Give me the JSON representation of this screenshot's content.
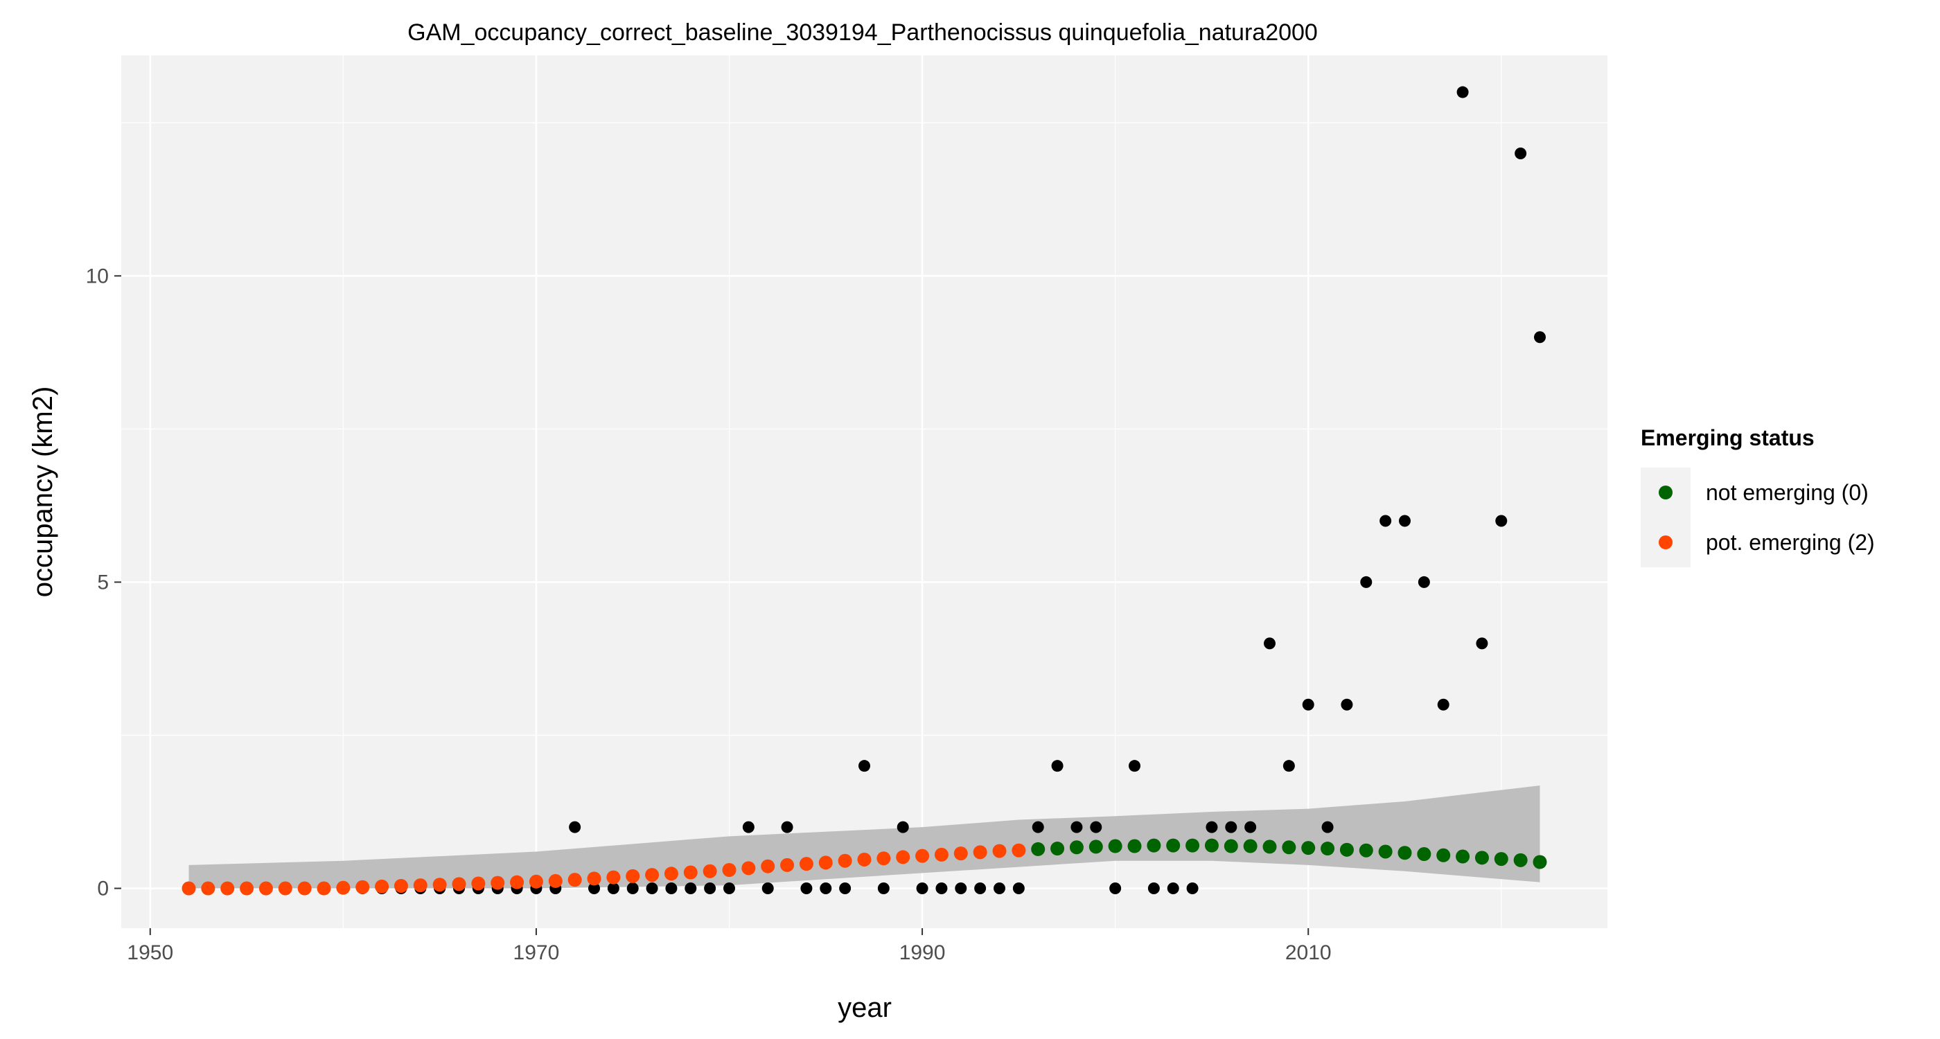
{
  "chart_data": {
    "type": "scatter",
    "title": "GAM_occupancy_correct_baseline_3039194_Parthenocissus quinquefolia_natura2000",
    "xlabel": "year",
    "ylabel": "occupancy (km2)",
    "xlim": [
      1948.5,
      2025.5
    ],
    "ylim": [
      -0.65,
      13.6
    ],
    "x_ticks": [
      1950,
      1970,
      1990,
      2010
    ],
    "y_ticks": [
      0,
      5,
      10
    ],
    "grid": true,
    "legend_position": "right",
    "legend": {
      "title": "Emerging status",
      "items": [
        {
          "label": "not emerging (0)",
          "color": "#006400"
        },
        {
          "label": "pot. emerging (2)",
          "color": "#FF4500"
        }
      ]
    },
    "colors": {
      "panel_bg": "#F2F2F2",
      "grid": "#FFFFFF",
      "ribbon": "#BEBEBE",
      "observed": "#000000",
      "not_emerging": "#006400",
      "pot_emerging": "#FF4500"
    },
    "observed": {
      "x": [
        1952,
        1953,
        1954,
        1955,
        1956,
        1957,
        1958,
        1959,
        1960,
        1961,
        1962,
        1963,
        1964,
        1965,
        1966,
        1967,
        1968,
        1969,
        1970,
        1971,
        1972,
        1973,
        1974,
        1975,
        1976,
        1977,
        1978,
        1979,
        1980,
        1981,
        1982,
        1983,
        1984,
        1985,
        1986,
        1987,
        1988,
        1989,
        1990,
        1991,
        1992,
        1993,
        1994,
        1995,
        1996,
        1997,
        1998,
        1999,
        2000,
        2001,
        2002,
        2003,
        2004,
        2005,
        2006,
        2007,
        2008,
        2009,
        2010,
        2011,
        2012,
        2013,
        2014,
        2015,
        2016,
        2017,
        2018,
        2019,
        2020,
        2021,
        2022
      ],
      "y": [
        0,
        0,
        0,
        0,
        0,
        0,
        0,
        0,
        0,
        0,
        0,
        0,
        0,
        0,
        0,
        0,
        0,
        0,
        0,
        0,
        1,
        0,
        0,
        0,
        0,
        0,
        0,
        0,
        0,
        1,
        0,
        1,
        0,
        0,
        0,
        2,
        0,
        1,
        0,
        0,
        0,
        0,
        0,
        0,
        1,
        2,
        1,
        1,
        0,
        2,
        0,
        0,
        0,
        1,
        1,
        1,
        4,
        2,
        3,
        1,
        3,
        5,
        6,
        6,
        5,
        3,
        13,
        4,
        6,
        12,
        9
      ]
    },
    "fitted": {
      "x": [
        1952,
        1953,
        1954,
        1955,
        1956,
        1957,
        1958,
        1959,
        1960,
        1961,
        1962,
        1963,
        1964,
        1965,
        1966,
        1967,
        1968,
        1969,
        1970,
        1971,
        1972,
        1973,
        1974,
        1975,
        1976,
        1977,
        1978,
        1979,
        1980,
        1981,
        1982,
        1983,
        1984,
        1985,
        1986,
        1987,
        1988,
        1989,
        1990,
        1991,
        1992,
        1993,
        1994,
        1995,
        1996,
        1997,
        1998,
        1999,
        2000,
        2001,
        2002,
        2003,
        2004,
        2005,
        2006,
        2007,
        2008,
        2009,
        2010,
        2011,
        2012,
        2013,
        2014,
        2015,
        2016,
        2017,
        2018,
        2019,
        2020,
        2021,
        2022
      ],
      "y": [
        0.0,
        0.0,
        0.0,
        0.0,
        0.0,
        0.0,
        0.0,
        0.0,
        0.01,
        0.02,
        0.03,
        0.04,
        0.05,
        0.06,
        0.07,
        0.08,
        0.09,
        0.1,
        0.11,
        0.12,
        0.14,
        0.16,
        0.18,
        0.2,
        0.22,
        0.24,
        0.26,
        0.28,
        0.3,
        0.33,
        0.36,
        0.38,
        0.4,
        0.42,
        0.45,
        0.47,
        0.49,
        0.51,
        0.53,
        0.55,
        0.57,
        0.59,
        0.61,
        0.62,
        0.64,
        0.65,
        0.67,
        0.68,
        0.69,
        0.69,
        0.7,
        0.7,
        0.7,
        0.7,
        0.69,
        0.69,
        0.68,
        0.67,
        0.66,
        0.65,
        0.63,
        0.62,
        0.6,
        0.58,
        0.56,
        0.54,
        0.52,
        0.5,
        0.48,
        0.46,
        0.43
      ],
      "status": [
        "2",
        "2",
        "2",
        "2",
        "2",
        "2",
        "2",
        "2",
        "2",
        "2",
        "2",
        "2",
        "2",
        "2",
        "2",
        "2",
        "2",
        "2",
        "2",
        "2",
        "2",
        "2",
        "2",
        "2",
        "2",
        "2",
        "2",
        "2",
        "2",
        "2",
        "2",
        "2",
        "2",
        "2",
        "2",
        "2",
        "2",
        "2",
        "2",
        "2",
        "2",
        "2",
        "2",
        "2",
        "0",
        "0",
        "0",
        "0",
        "0",
        "0",
        "0",
        "0",
        "0",
        "0",
        "0",
        "0",
        "0",
        "0",
        "0",
        "0",
        "0",
        "0",
        "0",
        "0",
        "0",
        "0",
        "0",
        "0",
        "0",
        "0",
        "0"
      ]
    },
    "ribbon": {
      "x": [
        1952,
        1960,
        1970,
        1980,
        1990,
        1995,
        2000,
        2005,
        2010,
        2015,
        2022
      ],
      "lower": [
        0,
        0,
        0,
        0.05,
        0.25,
        0.35,
        0.45,
        0.45,
        0.38,
        0.28,
        0.1
      ],
      "upper": [
        0.38,
        0.45,
        0.6,
        0.85,
        1.0,
        1.12,
        1.18,
        1.25,
        1.3,
        1.42,
        1.68
      ]
    }
  }
}
